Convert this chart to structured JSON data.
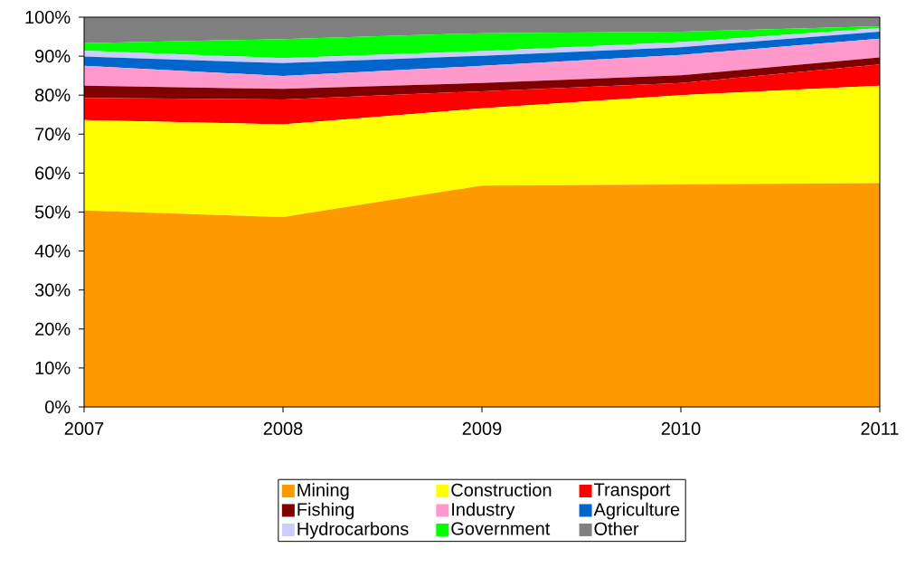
{
  "chart_data": {
    "type": "area",
    "stacked": true,
    "legend": "bottom",
    "x": [
      2007,
      2008,
      2009,
      2010,
      2011
    ],
    "xlim": [
      2007,
      2011
    ],
    "xticks": [
      2007,
      2008,
      2009,
      2010,
      2011
    ],
    "ylim": [
      0,
      100
    ],
    "yticks": [
      {
        "value": 0,
        "label": "0%"
      },
      {
        "value": 10,
        "label": "10%"
      },
      {
        "value": 20,
        "label": "20%"
      },
      {
        "value": 30,
        "label": "30%"
      },
      {
        "value": 40,
        "label": "40%"
      },
      {
        "value": 50,
        "label": "50%"
      },
      {
        "value": 60,
        "label": "60%"
      },
      {
        "value": 70,
        "label": "70%"
      },
      {
        "value": 80,
        "label": "80%"
      },
      {
        "value": 90,
        "label": "90%"
      },
      {
        "value": 100,
        "label": "100%"
      }
    ],
    "series": [
      {
        "name": "Mining",
        "color": "#ff9900",
        "values": [
          50.4,
          48.7,
          56.8,
          57.1,
          57.4
        ]
      },
      {
        "name": "Construction",
        "color": "#ffff00",
        "values": [
          23.2,
          23.8,
          19.8,
          22.9,
          25.0
        ]
      },
      {
        "name": "Transport",
        "color": "#ff0000",
        "values": [
          5.7,
          6.4,
          4.4,
          3.1,
          5.5
        ]
      },
      {
        "name": "Fishing",
        "color": "#800000",
        "values": [
          3.1,
          2.7,
          2.1,
          2.0,
          1.8
        ]
      },
      {
        "name": "Industry",
        "color": "#ff99cc",
        "values": [
          5.1,
          3.3,
          4.4,
          5.2,
          4.8
        ]
      },
      {
        "name": "Agriculture",
        "color": "#0066cc",
        "values": [
          2.4,
          3.3,
          2.6,
          2.0,
          1.8
        ]
      },
      {
        "name": "Hydrocarbons",
        "color": "#ccccff",
        "values": [
          1.5,
          1.3,
          1.2,
          1.3,
          0.9
        ]
      },
      {
        "name": "Government",
        "color": "#00ff00",
        "values": [
          1.9,
          4.9,
          4.6,
          2.7,
          0.5
        ]
      },
      {
        "name": "Other",
        "color": "#808080",
        "values": [
          6.7,
          5.6,
          4.1,
          3.7,
          2.3
        ]
      }
    ]
  }
}
